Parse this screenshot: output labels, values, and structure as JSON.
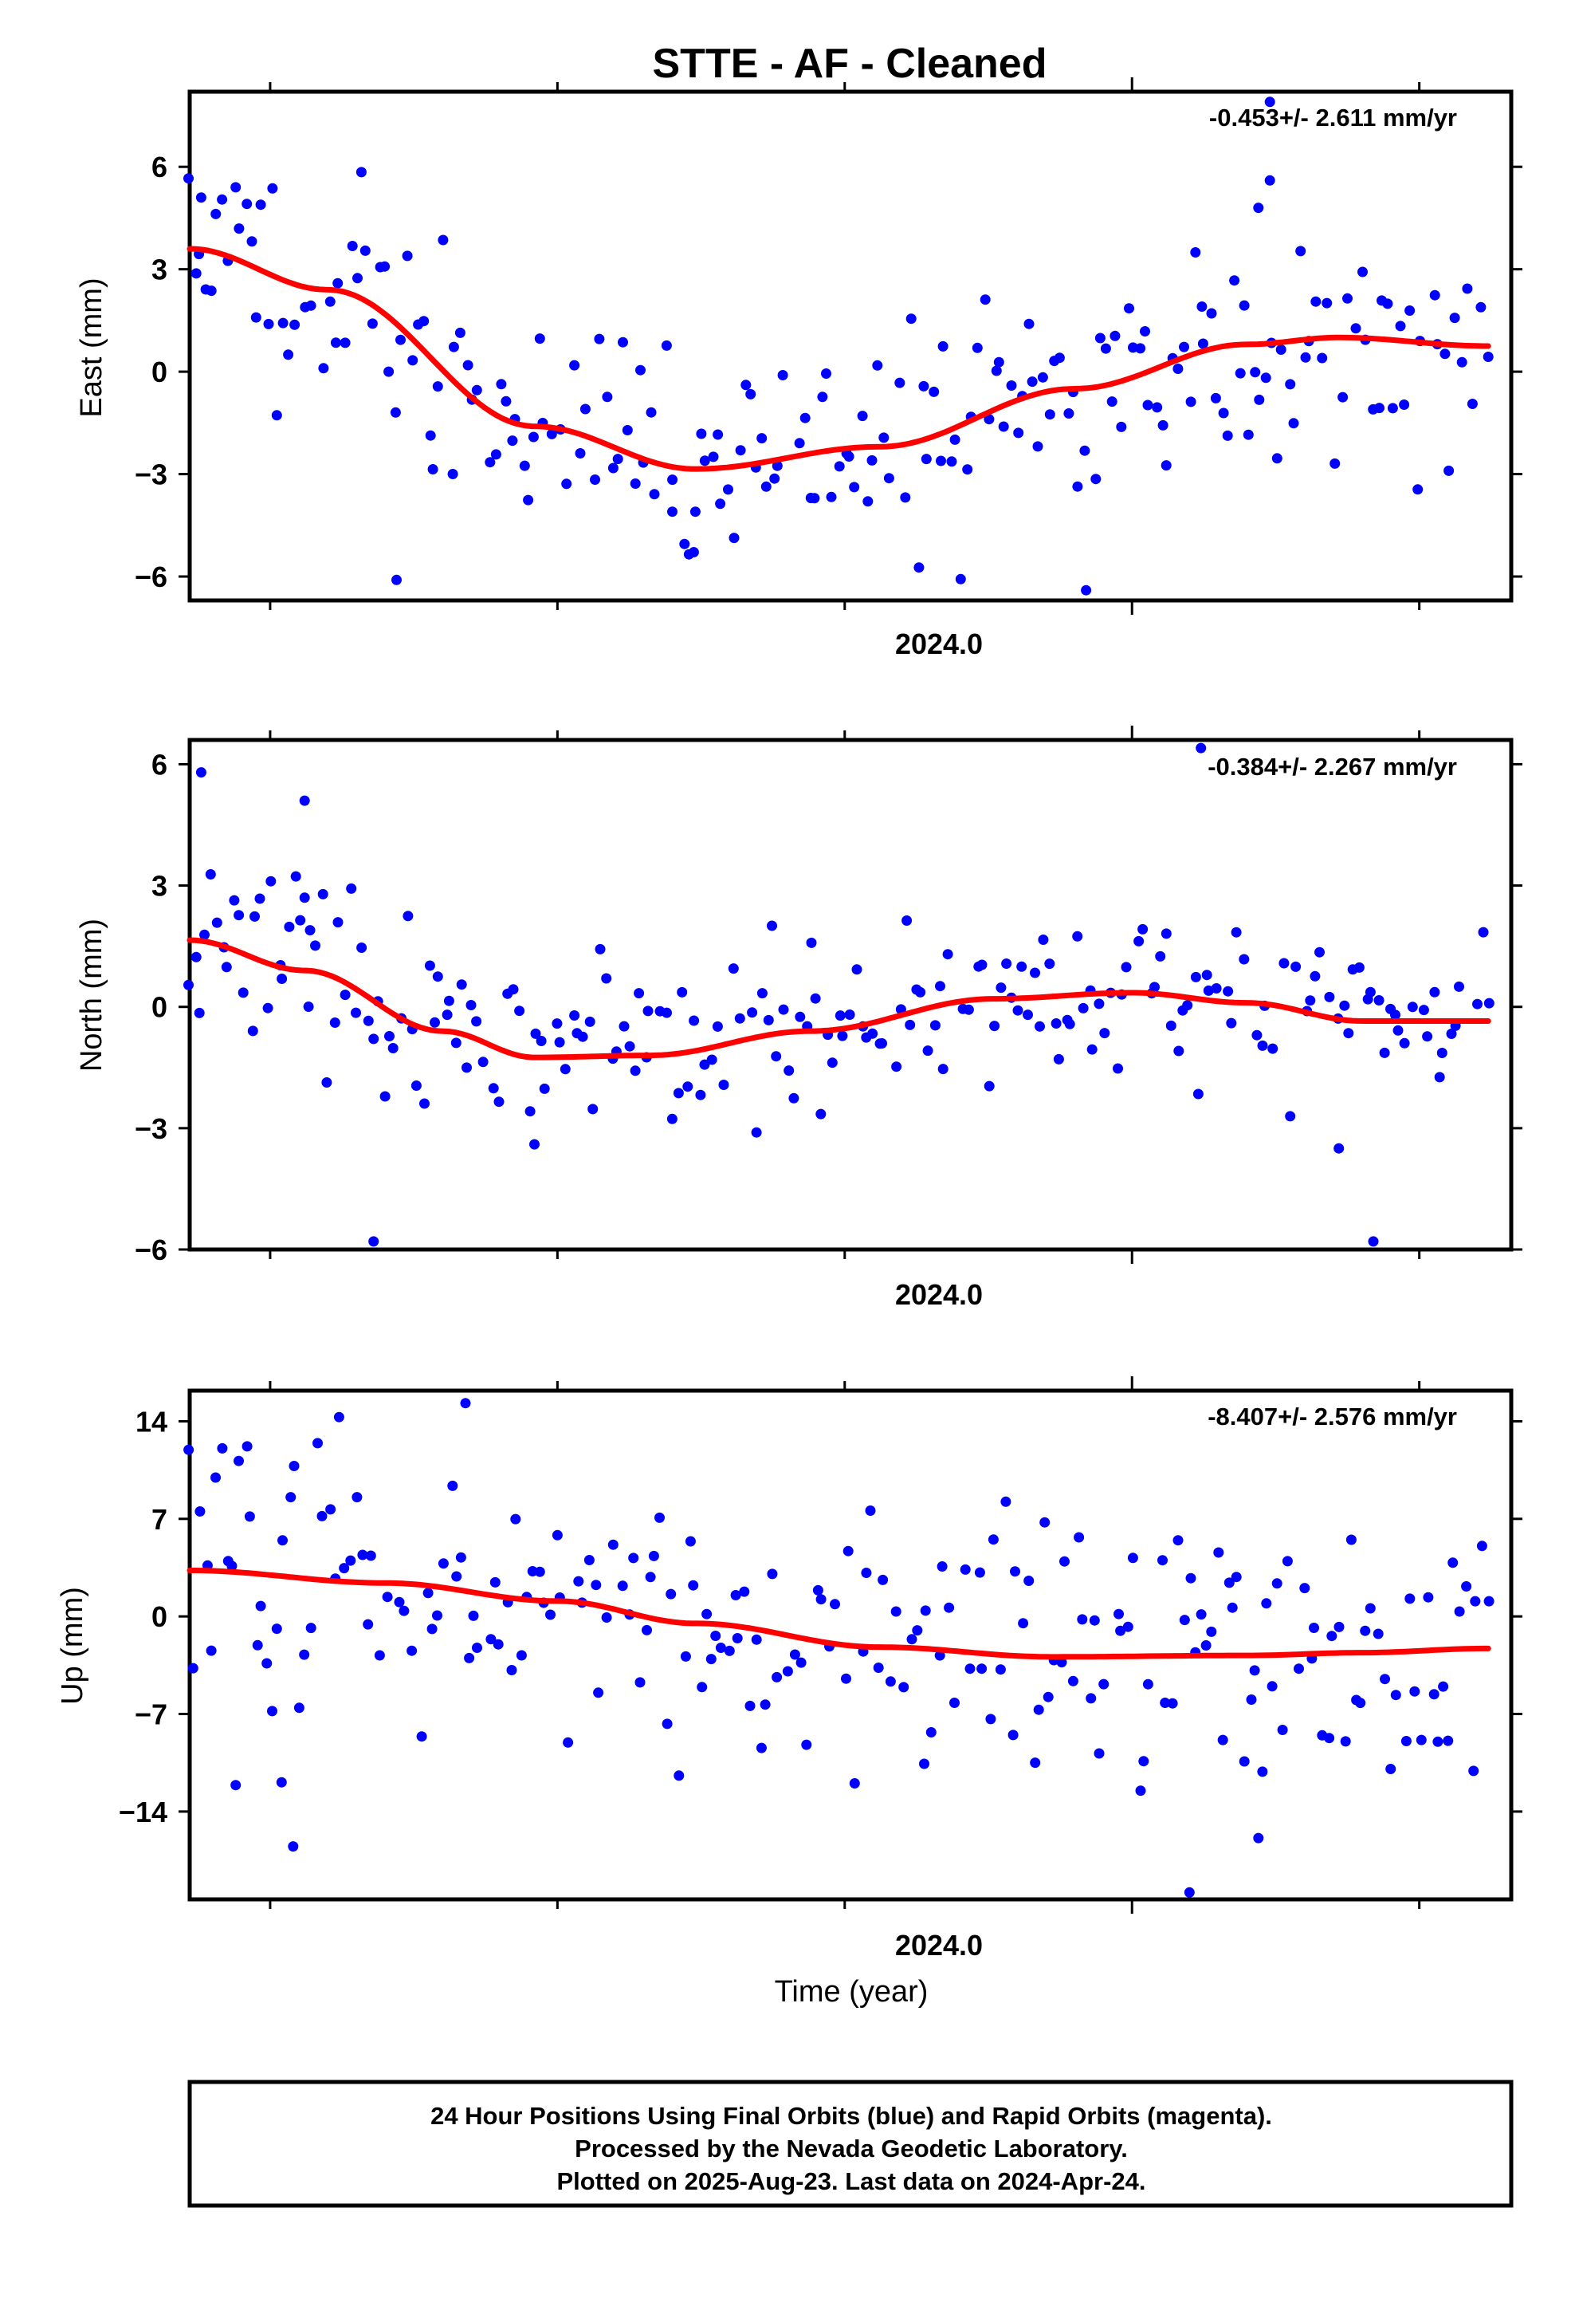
{
  "figure": {
    "title": "STTE  - AF - Cleaned",
    "xlabel": "Time (year)",
    "footer": [
      "24 Hour Positions Using Final Orbits (blue) and Rapid Orbits (magenta).",
      "Processed by the Nevada Geodetic Laboratory.",
      "Plotted on 2025-Aug-23. Last data on 2024-Apr-24."
    ],
    "colors": {
      "points": "#0000ff",
      "fit": "#ff0000",
      "axes": "#000000"
    }
  },
  "chart_data": [
    {
      "type": "scatter",
      "ylabel": "East (mm)",
      "rate": "-0.453+/- 2.611 mm/yr",
      "ylim": [
        -6.7,
        8.2
      ],
      "yticks": [
        6,
        3,
        0,
        -3,
        -6
      ],
      "xlim": [
        2023.18,
        2024.33
      ],
      "xtick_label": "2024.0",
      "x_end": 2024.31,
      "seed": 11,
      "noise": 1.6,
      "fit_knots": [
        [
          2023.18,
          3.6
        ],
        [
          2023.3,
          2.4
        ],
        [
          2023.48,
          -1.6
        ],
        [
          2023.62,
          -2.85
        ],
        [
          2023.78,
          -2.2
        ],
        [
          2023.95,
          -0.5
        ],
        [
          2024.1,
          0.8
        ],
        [
          2024.18,
          1.0
        ],
        [
          2024.31,
          0.75
        ]
      ],
      "outliers": [
        [
          2023.6,
          -4.1
        ],
        [
          2023.62,
          -4.1
        ],
        [
          2023.96,
          -6.4
        ],
        [
          2023.36,
          -6.1
        ],
        [
          2024.12,
          7.9
        ],
        [
          2024.12,
          5.6
        ],
        [
          2024.11,
          4.8
        ],
        [
          2023.19,
          5.1
        ],
        [
          2023.22,
          5.4
        ]
      ]
    },
    {
      "type": "scatter",
      "ylabel": "North (mm)",
      "rate": "-0.384+/- 2.267 mm/yr",
      "ylim": [
        -6.0,
        6.6
      ],
      "yticks": [
        6,
        3,
        0,
        -3,
        -6
      ],
      "xlim": [
        2023.18,
        2024.33
      ],
      "xtick_label": "2024.0",
      "x_end": 2024.31,
      "seed": 23,
      "noise": 1.05,
      "fit_knots": [
        [
          2023.18,
          1.65
        ],
        [
          2023.28,
          0.9
        ],
        [
          2023.4,
          -0.6
        ],
        [
          2023.48,
          -1.25
        ],
        [
          2023.58,
          -1.2
        ],
        [
          2023.72,
          -0.6
        ],
        [
          2023.88,
          0.2
        ],
        [
          2024.0,
          0.35
        ],
        [
          2024.1,
          0.1
        ],
        [
          2024.2,
          -0.35
        ],
        [
          2024.31,
          -0.35
        ]
      ],
      "outliers": [
        [
          2023.19,
          5.8
        ],
        [
          2023.28,
          5.1
        ],
        [
          2023.34,
          -5.8
        ],
        [
          2024.06,
          6.4
        ],
        [
          2024.21,
          -5.8
        ],
        [
          2023.48,
          -3.4
        ],
        [
          2024.18,
          -3.5
        ],
        [
          2023.28,
          2.7
        ]
      ]
    },
    {
      "type": "scatter",
      "ylabel": "Up (mm)",
      "rate": "-8.407+/- 2.576 mm/yr",
      "ylim": [
        -20.3,
        16.2
      ],
      "yticks": [
        14,
        7,
        0,
        -7,
        -14
      ],
      "xlim": [
        2023.18,
        2024.33
      ],
      "xtick_label": "2024.0",
      "x_end": 2024.31,
      "seed": 37,
      "noise": 4.6,
      "fit_knots": [
        [
          2023.18,
          3.3
        ],
        [
          2023.35,
          2.4
        ],
        [
          2023.5,
          1.1
        ],
        [
          2023.62,
          -0.5
        ],
        [
          2023.78,
          -2.2
        ],
        [
          2023.93,
          -2.9
        ],
        [
          2024.1,
          -2.8
        ],
        [
          2024.2,
          -2.6
        ],
        [
          2024.31,
          -2.3
        ]
      ],
      "outliers": [
        [
          2023.42,
          15.3
        ],
        [
          2023.31,
          14.3
        ],
        [
          2023.23,
          12.2
        ],
        [
          2024.05,
          -19.8
        ],
        [
          2023.27,
          -16.5
        ],
        [
          2024.11,
          -15.9
        ],
        [
          2023.22,
          -12.1
        ],
        [
          2023.26,
          -11.9
        ]
      ]
    }
  ]
}
